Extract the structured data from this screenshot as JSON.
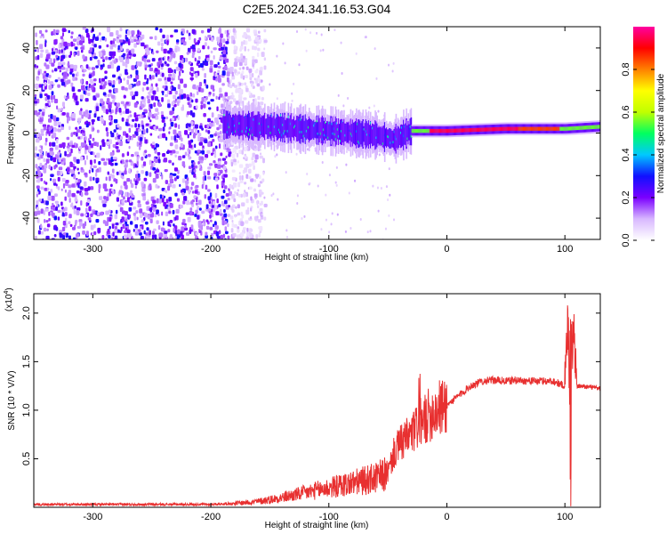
{
  "title": "C2E5.2024.341.16.53.G04",
  "colors": {
    "snr_line": "#e83030",
    "colorbar_stops": [
      "#ffffff",
      "#d8b8ff",
      "#7a00ff",
      "#1010ff",
      "#00c8ff",
      "#00ff60",
      "#c0ff00",
      "#ffff00",
      "#ff8000",
      "#ff0000",
      "#ff00a0"
    ]
  },
  "chart_data": [
    {
      "type": "heatmap",
      "id": "spectrogram",
      "xlabel": "Height of straight line (km)",
      "ylabel": "Frequency (Hz)",
      "xlim": [
        -350,
        130
      ],
      "ylim": [
        -50,
        50
      ],
      "xticks": [
        -300,
        -200,
        -100,
        0,
        100
      ],
      "yticks": [
        -40,
        -20,
        0,
        20,
        40
      ],
      "colorbar": {
        "label": "Normalized spectral amplitude",
        "range": [
          0,
          1
        ],
        "ticks": [
          "0.0",
          "0.2",
          "0.4",
          "0.6",
          "0.8"
        ]
      },
      "features": {
        "noise_region_x": [
          -350,
          -185
        ],
        "signal_onset_x": -190,
        "signal_band_center_hz": [
          [
            -190,
            4
          ],
          [
            -150,
            3
          ],
          [
            -100,
            1
          ],
          [
            -60,
            -1
          ],
          [
            -45,
            -3
          ],
          [
            -30,
            1
          ],
          [
            0,
            1
          ],
          [
            50,
            2
          ],
          [
            100,
            2
          ],
          [
            130,
            3
          ]
        ],
        "strong_signal_x": [
          -30,
          130
        ]
      }
    },
    {
      "type": "line",
      "id": "snr",
      "xlabel": "Height of straight line (km)",
      "ylabel": "SNR (10 * V/V)",
      "yscale_label": "(x10",
      "yscale_exp": "4",
      "xlim": [
        -350,
        130
      ],
      "ylim": [
        0,
        2.2
      ],
      "xticks": [
        -300,
        -200,
        -100,
        0,
        100
      ],
      "yticks": [
        "0.5",
        "1.0",
        "1.5",
        "2.0"
      ],
      "series": [
        {
          "x": [
            -350,
            -300,
            -250,
            -200,
            -180,
            -160,
            -140,
            -120,
            -100,
            -80,
            -60,
            -50,
            -45,
            -40,
            -30,
            -20,
            -10,
            0,
            10,
            20,
            30,
            40,
            50,
            60,
            70,
            80,
            90,
            100,
            103,
            105,
            107,
            110,
            120,
            130
          ],
          "y": [
            0.03,
            0.03,
            0.03,
            0.03,
            0.04,
            0.06,
            0.1,
            0.15,
            0.2,
            0.25,
            0.3,
            0.35,
            0.55,
            0.65,
            0.75,
            0.9,
            1.0,
            1.05,
            1.15,
            1.25,
            1.3,
            1.31,
            1.3,
            1.31,
            1.3,
            1.3,
            1.3,
            1.25,
            2.0,
            0.1,
            2.15,
            1.25,
            1.24,
            1.22
          ]
        }
      ]
    }
  ]
}
